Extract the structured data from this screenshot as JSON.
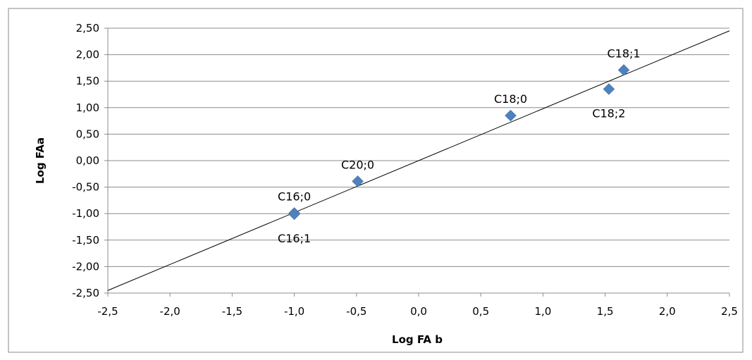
{
  "chart_data": {
    "type": "scatter",
    "xlabel": "Log FA b",
    "ylabel": "Log FAa",
    "xlim": [
      -2.5,
      2.5
    ],
    "ylim": [
      -2.5,
      2.5
    ],
    "x_ticks": [
      "-2,5",
      "-2,0",
      "-1,5",
      "-1,0",
      "-0,5",
      "0,0",
      "0,5",
      "1,0",
      "1,5",
      "2,0",
      "2,5"
    ],
    "y_ticks": [
      "2,50",
      "2,00",
      "1,50",
      "1,00",
      "0,50",
      "0,00",
      "-0,50",
      "-1,00",
      "-1,50",
      "-2,00",
      "-2,50"
    ],
    "grid": "horizontal",
    "marker_color": "#4F81BD",
    "trendline": {
      "from": [
        -2.5,
        -2.45
      ],
      "to": [
        2.5,
        2.45
      ]
    },
    "points": [
      {
        "label": "C16;0",
        "x": -1.0,
        "y": -0.99,
        "label_pos": "above"
      },
      {
        "label": "C16;1",
        "x": -1.0,
        "y": -1.01,
        "label_pos": "below"
      },
      {
        "label": "C20;0",
        "x": -0.49,
        "y": -0.39,
        "label_pos": "above"
      },
      {
        "label": "C18;0",
        "x": 0.74,
        "y": 0.85,
        "label_pos": "above"
      },
      {
        "label": "C18;2",
        "x": 1.53,
        "y": 1.35,
        "label_pos": "below"
      },
      {
        "label": "C18;1",
        "x": 1.65,
        "y": 1.71,
        "label_pos": "above"
      }
    ]
  }
}
